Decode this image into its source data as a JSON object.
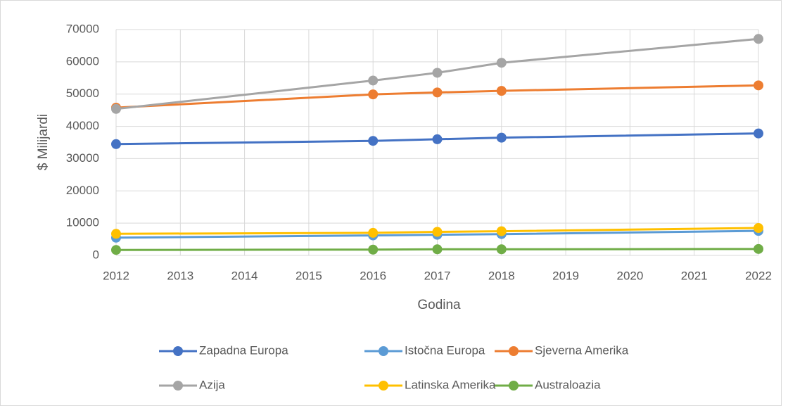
{
  "chart_data": {
    "type": "line",
    "x_label": "Godina",
    "y_label": "$ Milijardi",
    "x": [
      2012,
      2016,
      2017,
      2018,
      2022
    ],
    "xlim": [
      2012,
      2022
    ],
    "xticks": [
      2012,
      2013,
      2014,
      2015,
      2016,
      2017,
      2018,
      2019,
      2020,
      2021,
      2022
    ],
    "ylim": [
      0,
      70000
    ],
    "yticks": [
      0,
      10000,
      20000,
      30000,
      40000,
      50000,
      60000,
      70000
    ],
    "grid": true,
    "legend": "bottom",
    "series": [
      {
        "name": "Zapadna Europa",
        "color": "#4472c4",
        "values": [
          34500,
          35500,
          36000,
          36500,
          37800
        ]
      },
      {
        "name": "Istočna Europa",
        "color": "#5b9bd5",
        "values": [
          5500,
          6200,
          6400,
          6600,
          7600
        ]
      },
      {
        "name": "Sjeverna Amerika",
        "color": "#ed7d31",
        "values": [
          45800,
          49900,
          50500,
          51000,
          52700
        ]
      },
      {
        "name": "Azija",
        "color": "#a5a5a5",
        "values": [
          45400,
          54200,
          56600,
          59700,
          67100
        ]
      },
      {
        "name": "Latinska Amerika",
        "color": "#ffc000",
        "values": [
          6700,
          7000,
          7300,
          7500,
          8500
        ]
      },
      {
        "name": "Australoazia",
        "color": "#70ad47",
        "values": [
          1700,
          1800,
          1900,
          1900,
          2000
        ]
      }
    ]
  }
}
